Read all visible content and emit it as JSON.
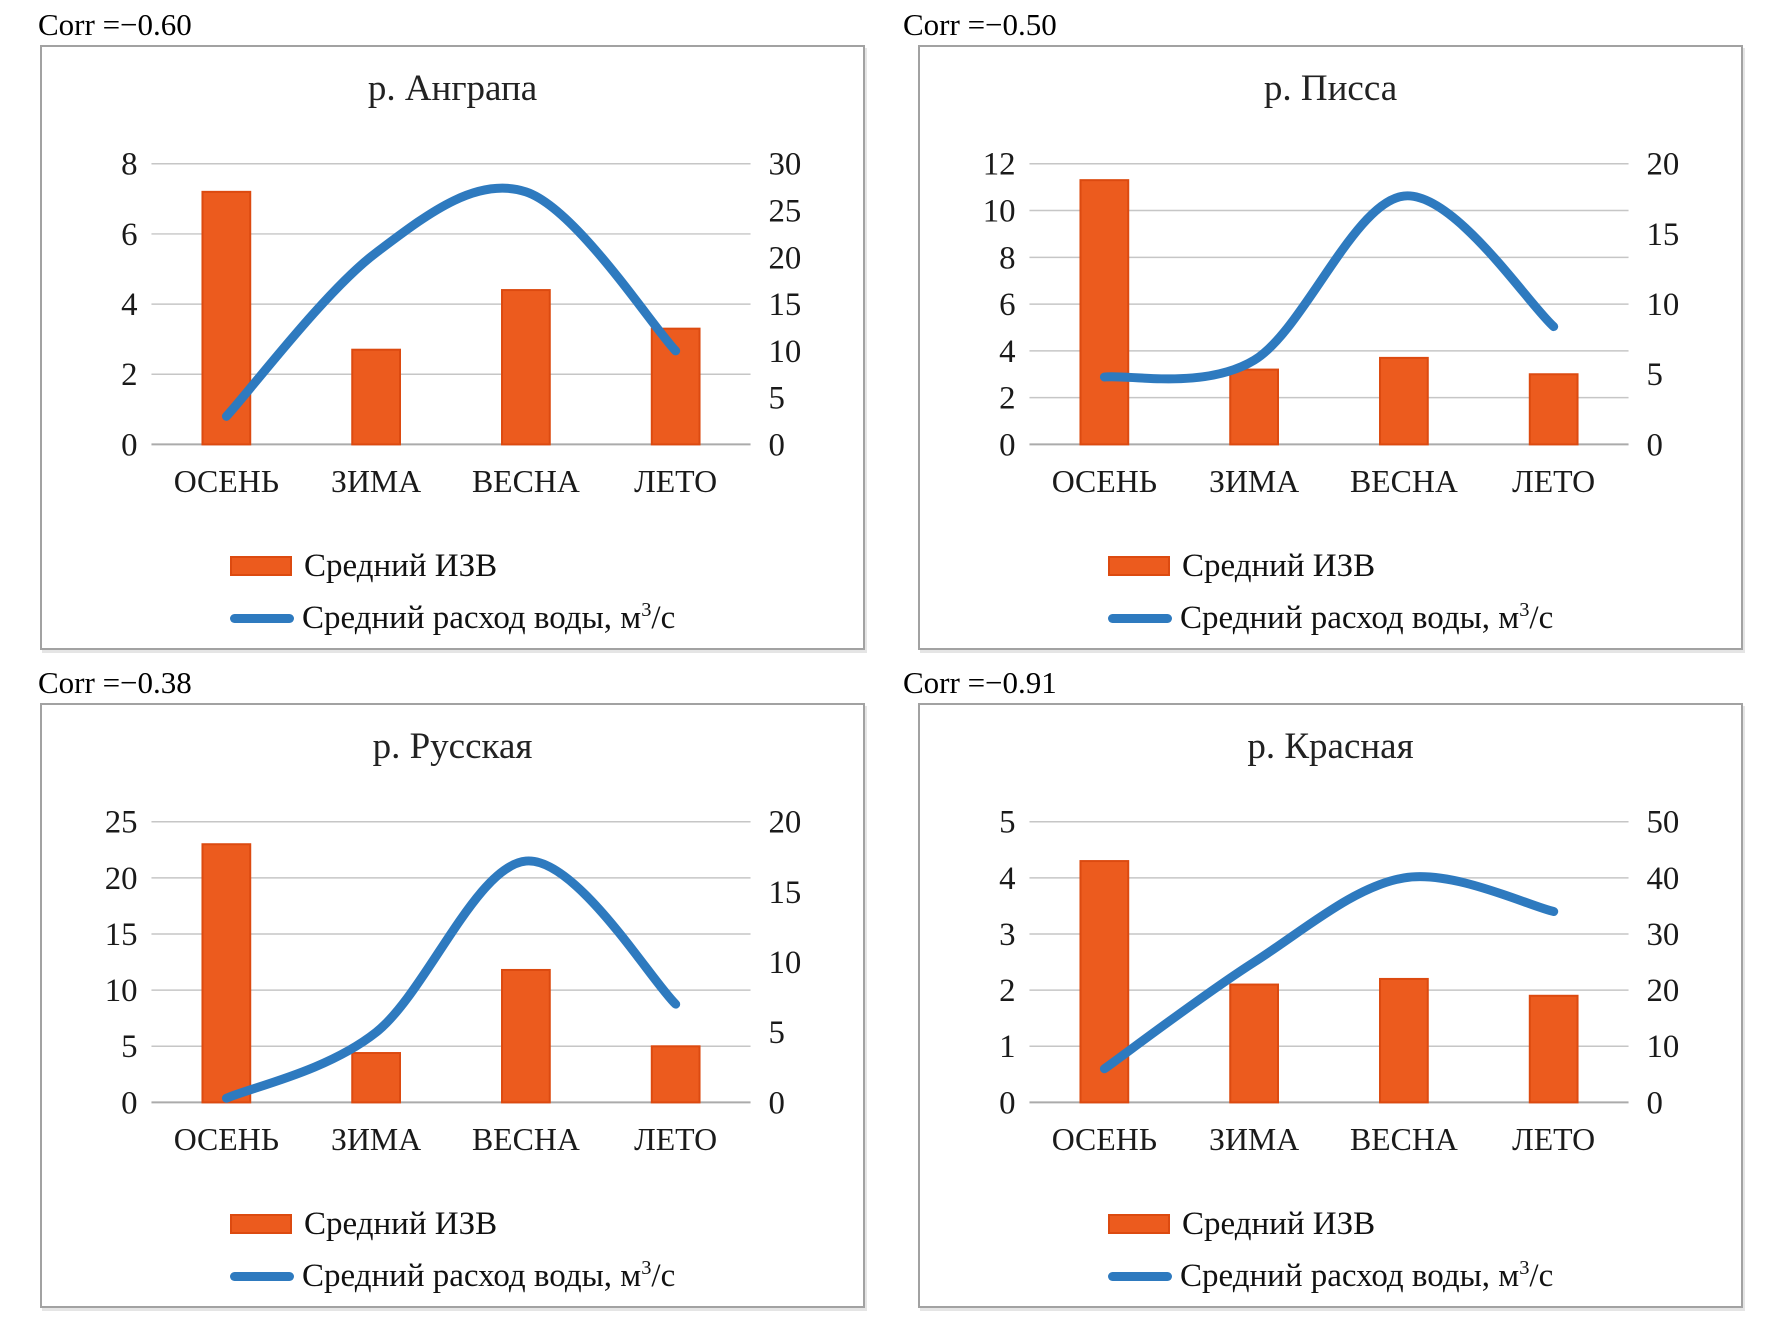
{
  "page_type": "figure-grid-2x2-dual-axis-charts",
  "colors": {
    "bar_fill": "#EC5B1E",
    "bar_border": "#DC4A10",
    "line": "#2E7ABF",
    "grid": "#C6C6C6",
    "axis": "#ABABAB",
    "text": "#1A1A1A",
    "frame": "#A2A2A2"
  },
  "legend": {
    "bar_label": "Средний ИЗВ",
    "flow_label_prefix": "Средний расход воды, м",
    "flow_sup": "3",
    "flow_suffix": "/с"
  },
  "chart_data": [
    {
      "type": "bar+line",
      "title": "р. Анграпа",
      "corr_label": "Corr =−0.60",
      "categories": [
        "ОСЕНЬ",
        "ЗИМА",
        "ВЕСНА",
        "ЛЕТО"
      ],
      "series": [
        {
          "name": "Средний ИЗВ",
          "type": "bar",
          "axis": "left",
          "values": [
            7.2,
            2.7,
            4.4,
            3.3
          ]
        },
        {
          "name": "Средний расход воды, м3/с",
          "type": "line",
          "axis": "right",
          "values": [
            3,
            20.5,
            27,
            10
          ]
        }
      ],
      "left_axis": {
        "ticks": [
          0,
          2,
          4,
          6,
          8
        ],
        "min": 0,
        "max": 8
      },
      "right_axis": {
        "ticks": [
          0,
          5,
          10,
          15,
          20,
          25,
          30
        ],
        "min": 0,
        "max": 30
      },
      "grid": true,
      "legend_position": "bottom-left"
    },
    {
      "type": "bar+line",
      "title": "р. Писса",
      "corr_label": "Corr =−0.50",
      "categories": [
        "ОСЕНЬ",
        "ЗИМА",
        "ВЕСНА",
        "ЛЕТО"
      ],
      "series": [
        {
          "name": "Средний ИЗВ",
          "type": "bar",
          "axis": "left",
          "values": [
            11.3,
            3.2,
            3.7,
            3.0
          ]
        },
        {
          "name": "Средний расход воды, м3/с",
          "type": "line",
          "axis": "right",
          "values": [
            4.8,
            6,
            17.7,
            8.4
          ]
        }
      ],
      "left_axis": {
        "ticks": [
          0,
          2,
          4,
          6,
          8,
          10,
          12
        ],
        "min": 0,
        "max": 12
      },
      "right_axis": {
        "ticks": [
          0,
          5,
          10,
          15,
          20
        ],
        "min": 0,
        "max": 20
      },
      "grid": true,
      "legend_position": "bottom-left"
    },
    {
      "type": "bar+line",
      "title": "р. Русская",
      "corr_label": "Corr =−0.38",
      "categories": [
        "ОСЕНЬ",
        "ЗИМА",
        "ВЕСНА",
        "ЛЕТО"
      ],
      "series": [
        {
          "name": "Средний ИЗВ",
          "type": "bar",
          "axis": "left",
          "values": [
            23,
            4.4,
            11.8,
            5.0
          ]
        },
        {
          "name": "Средний расход воды, м3/с",
          "type": "line",
          "axis": "right",
          "values": [
            0.3,
            5,
            17.2,
            7
          ]
        }
      ],
      "left_axis": {
        "ticks": [
          0,
          5,
          10,
          15,
          20,
          25
        ],
        "min": 0,
        "max": 25
      },
      "right_axis": {
        "ticks": [
          0,
          5,
          10,
          15,
          20
        ],
        "min": 0,
        "max": 20
      },
      "grid": true,
      "legend_position": "bottom-left"
    },
    {
      "type": "bar+line",
      "title": "р. Красная",
      "corr_label": "Corr =−0.91",
      "categories": [
        "ОСЕНЬ",
        "ЗИМА",
        "ВЕСНА",
        "ЛЕТО"
      ],
      "series": [
        {
          "name": "Средний ИЗВ",
          "type": "bar",
          "axis": "left",
          "values": [
            4.3,
            2.1,
            2.2,
            1.9
          ]
        },
        {
          "name": "Средний расход воды, м3/с",
          "type": "line",
          "axis": "right",
          "values": [
            6,
            25,
            40,
            34
          ]
        }
      ],
      "left_axis": {
        "ticks": [
          0,
          1,
          2,
          3,
          4,
          5
        ],
        "min": 0,
        "max": 5
      },
      "right_axis": {
        "ticks": [
          0,
          10,
          20,
          30,
          40,
          50
        ],
        "min": 0,
        "max": 50
      },
      "grid": true,
      "legend_position": "bottom-left"
    }
  ]
}
